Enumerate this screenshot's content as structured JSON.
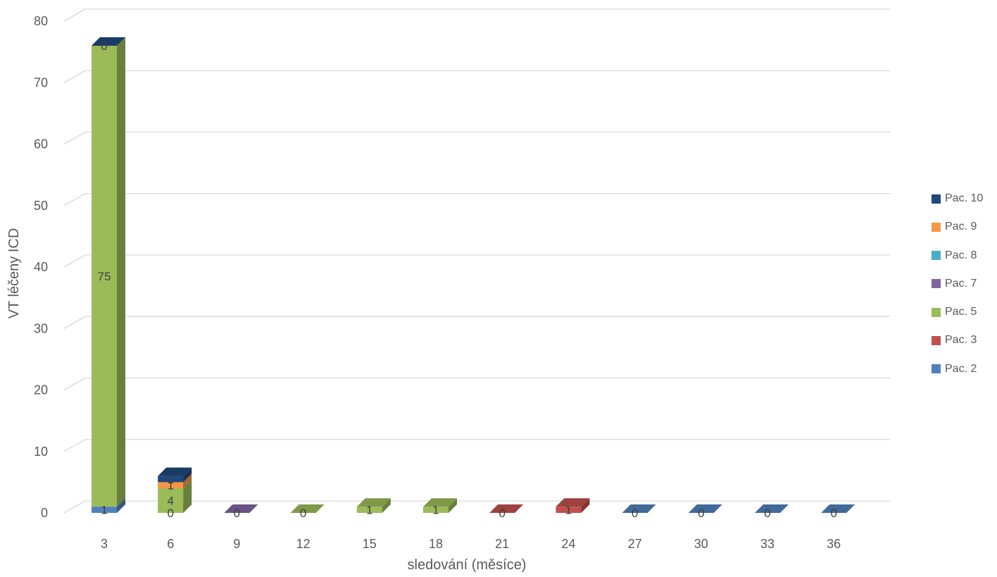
{
  "chart_data": {
    "type": "bar",
    "stacked": true,
    "three_d": true,
    "title": "",
    "xlabel": "sledování (měsíce)",
    "ylabel": "VT léčeny ICD",
    "ylim": [
      0,
      80
    ],
    "yticks": [
      "0",
      "10",
      "20",
      "30",
      "40",
      "50",
      "60",
      "70",
      "80"
    ],
    "grid": true,
    "legend_position": "right",
    "categories": [
      "3",
      "6",
      "9",
      "12",
      "15",
      "18",
      "21",
      "24",
      "27",
      "30",
      "33",
      "36"
    ],
    "series": [
      {
        "name": "Pac. 2",
        "color": "#4F81BD",
        "values": [
          1,
          0,
          null,
          null,
          null,
          null,
          null,
          null,
          0,
          0,
          0,
          0
        ]
      },
      {
        "name": "Pac. 3",
        "color": "#C0504D",
        "values": [
          null,
          null,
          null,
          null,
          null,
          null,
          0,
          1,
          null,
          null,
          null,
          null
        ]
      },
      {
        "name": "Pac. 5",
        "color": "#9BBB59",
        "values": [
          75,
          4,
          null,
          0,
          1,
          1,
          null,
          null,
          null,
          null,
          null,
          null
        ]
      },
      {
        "name": "Pac. 7",
        "color": "#8064A2",
        "values": [
          null,
          null,
          0,
          null,
          null,
          null,
          null,
          null,
          null,
          null,
          null,
          null
        ]
      },
      {
        "name": "Pac. 8",
        "color": "#4BACC6",
        "values": [
          null,
          null,
          null,
          null,
          null,
          null,
          null,
          null,
          null,
          null,
          null,
          null
        ]
      },
      {
        "name": "Pac. 9",
        "color": "#F79646",
        "values": [
          null,
          1,
          null,
          null,
          null,
          null,
          null,
          null,
          null,
          null,
          null,
          null
        ]
      },
      {
        "name": "Pac. 10",
        "color": "#1F497D",
        "values": [
          0,
          1,
          null,
          null,
          null,
          null,
          null,
          null,
          null,
          null,
          null,
          null
        ]
      }
    ],
    "legend_order": [
      "Pac. 10",
      "Pac. 9",
      "Pac. 8",
      "Pac. 7",
      "Pac. 5",
      "Pac. 3",
      "Pac. 2"
    ]
  }
}
